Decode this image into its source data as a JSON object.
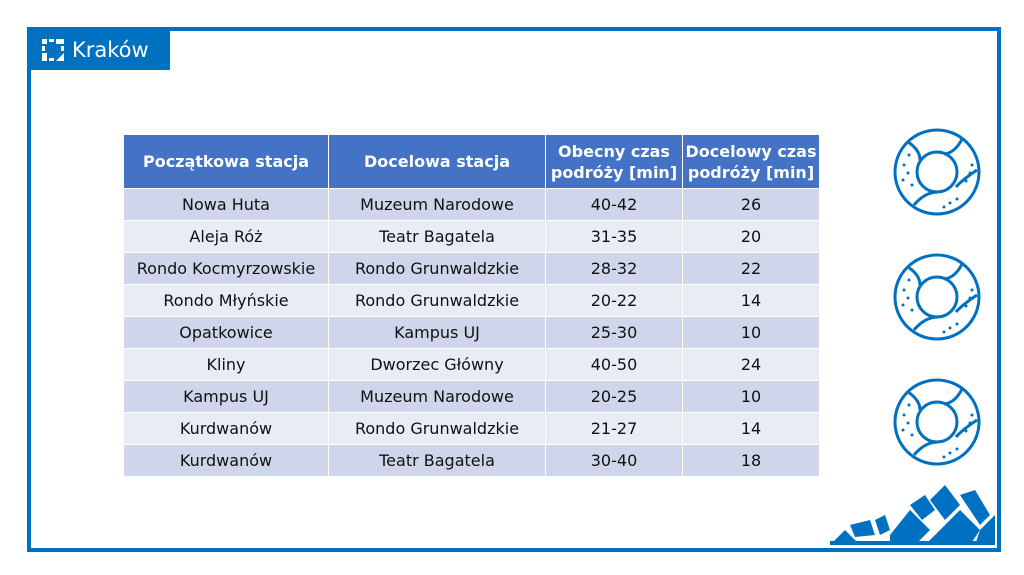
{
  "logo": {
    "text": "Kraków"
  },
  "table": {
    "headers": [
      "Początkowa stacja",
      "Docelowa stacja",
      "Obecny czas podróży [min]",
      "Docelowy czas podróży [min]"
    ],
    "rows": [
      [
        "Nowa Huta",
        "Muzeum Narodowe",
        "40-42",
        "26"
      ],
      [
        "Aleja Róż",
        "Teatr Bagatela",
        "31-35",
        "20"
      ],
      [
        "Rondo Kocmyrzowskie",
        "Rondo Grunwaldzkie",
        "28-32",
        "22"
      ],
      [
        "Rondo Młyńskie",
        "Rondo Grunwaldzkie",
        "20-22",
        "14"
      ],
      [
        "Opatkowice",
        "Kampus UJ",
        "25-30",
        "10"
      ],
      [
        "Kliny",
        "Dworzec Główny",
        "40-50",
        "24"
      ],
      [
        "Kampus UJ",
        "Muzeum Narodowe",
        "20-25",
        "10"
      ],
      [
        "Kurdwanów",
        "Rondo Grunwaldzkie",
        "21-27",
        "14"
      ],
      [
        "Kurdwanów",
        "Teatr Bagatela",
        "30-40",
        "18"
      ]
    ]
  },
  "colors": {
    "brand": "#0070c0",
    "header": "#4472c4",
    "row_odd": "#cfd5ea",
    "row_even": "#e9ebf5"
  },
  "icons": [
    "krakow-logo-icon",
    "obwarzanek-icon",
    "obwarzanek-icon",
    "obwarzanek-icon",
    "city-skyline-decoration"
  ]
}
